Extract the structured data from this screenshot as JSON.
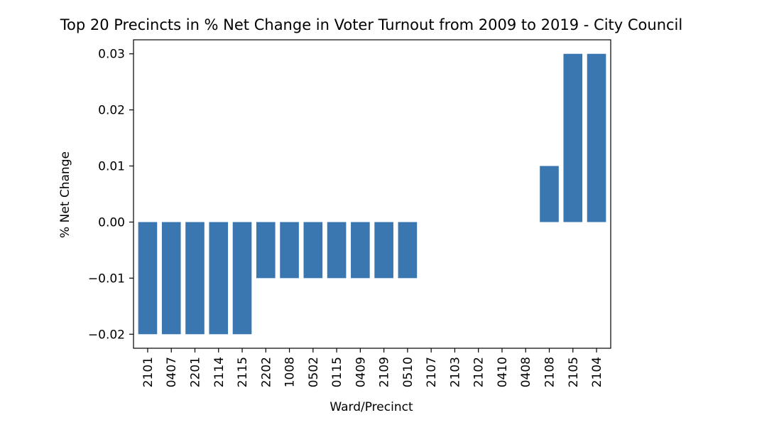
{
  "chart_data": {
    "type": "bar",
    "title": "Top 20 Precincts in % Net Change in Voter Turnout from 2009 to 2019 - City Council",
    "xlabel": "Ward/Precinct",
    "ylabel": "% Net Change",
    "categories": [
      "2101",
      "0407",
      "2201",
      "2114",
      "2115",
      "2202",
      "1008",
      "0502",
      "0115",
      "0409",
      "2109",
      "0510",
      "2107",
      "2103",
      "2102",
      "0410",
      "0408",
      "2108",
      "2105",
      "2104"
    ],
    "values": [
      -0.02,
      -0.02,
      -0.02,
      -0.02,
      -0.02,
      -0.01,
      -0.01,
      -0.01,
      -0.01,
      -0.01,
      -0.01,
      -0.01,
      0,
      0,
      0,
      0,
      0,
      0.01,
      0.03,
      0.03
    ],
    "ylim": [
      -0.0225,
      0.0325
    ],
    "yticks": [
      -0.02,
      -0.01,
      0.0,
      0.01,
      0.02,
      0.03
    ],
    "ytick_labels": [
      "−0.02",
      "−0.01",
      "0.00",
      "0.01",
      "0.02",
      "0.03"
    ],
    "bar_color": "#3a76af",
    "grid": false,
    "legend": "none"
  }
}
